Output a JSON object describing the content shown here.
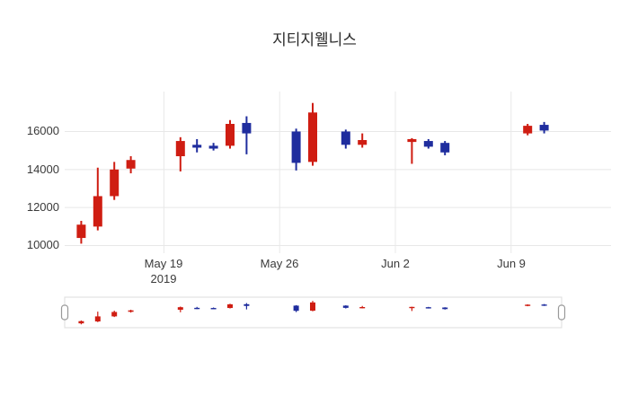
{
  "chart_data": {
    "type": "candlestick",
    "title": "지티지웰니스",
    "x_tick_labels": [
      "May 19",
      "May 26",
      "Jun 2",
      "Jun 9"
    ],
    "x_tick_year": "2019",
    "x_tick_days": [
      6,
      13,
      20,
      27
    ],
    "y_tick_labels": [
      "10000",
      "12000",
      "14000",
      "16000"
    ],
    "y_tick_values": [
      10000,
      12000,
      14000,
      16000
    ],
    "y_range": [
      9600,
      18100
    ],
    "x_range_days": [
      0,
      33
    ],
    "grid": true,
    "legend_position": "none",
    "rangeslider": true,
    "colors": {
      "increasing": "#cf1d12",
      "decreasing": "#1f2d9e",
      "grid": "#e8e8e8",
      "text": "#3a3a3a",
      "slider_border": "#dddddd",
      "handle_border": "#999999",
      "background": "#ffffff"
    },
    "candles": [
      {
        "date": "2019-05-14",
        "day": 1,
        "open": 10400,
        "high": 11300,
        "low": 10100,
        "close": 11100
      },
      {
        "date": "2019-05-15",
        "day": 2,
        "open": 11000,
        "high": 14100,
        "low": 10800,
        "close": 12600
      },
      {
        "date": "2019-05-16",
        "day": 3,
        "open": 12600,
        "high": 14400,
        "low": 12400,
        "close": 14000
      },
      {
        "date": "2019-05-17",
        "day": 4,
        "open": 14050,
        "high": 14700,
        "low": 13800,
        "close": 14500
      },
      {
        "date": "2019-05-20",
        "day": 7,
        "open": 14700,
        "high": 15700,
        "low": 13900,
        "close": 15500
      },
      {
        "date": "2019-05-21",
        "day": 8,
        "open": 15300,
        "high": 15600,
        "low": 14900,
        "close": 15150
      },
      {
        "date": "2019-05-22",
        "day": 9,
        "open": 15250,
        "high": 15400,
        "low": 15000,
        "close": 15100
      },
      {
        "date": "2019-05-23",
        "day": 10,
        "open": 15250,
        "high": 16600,
        "low": 15100,
        "close": 16400
      },
      {
        "date": "2019-05-24",
        "day": 11,
        "open": 16450,
        "high": 16800,
        "low": 14800,
        "close": 15900
      },
      {
        "date": "2019-05-27",
        "day": 14,
        "open": 16000,
        "high": 16150,
        "low": 13950,
        "close": 14350
      },
      {
        "date": "2019-05-28",
        "day": 15,
        "open": 14400,
        "high": 17500,
        "low": 14200,
        "close": 17000
      },
      {
        "date": "2019-05-30",
        "day": 17,
        "open": 16000,
        "high": 16100,
        "low": 15100,
        "close": 15300
      },
      {
        "date": "2019-05-31",
        "day": 18,
        "open": 15300,
        "high": 15900,
        "low": 15150,
        "close": 15550
      },
      {
        "date": "2019-06-03",
        "day": 21,
        "open": 15450,
        "high": 15650,
        "low": 14300,
        "close": 15600
      },
      {
        "date": "2019-06-04",
        "day": 22,
        "open": 15500,
        "high": 15600,
        "low": 15100,
        "close": 15200
      },
      {
        "date": "2019-06-05",
        "day": 23,
        "open": 15400,
        "high": 15500,
        "low": 14750,
        "close": 14900
      },
      {
        "date": "2019-06-10",
        "day": 28,
        "open": 15900,
        "high": 16400,
        "low": 15800,
        "close": 16300
      },
      {
        "date": "2019-06-11",
        "day": 29,
        "open": 16350,
        "high": 16500,
        "low": 15900,
        "close": 16050
      }
    ]
  }
}
